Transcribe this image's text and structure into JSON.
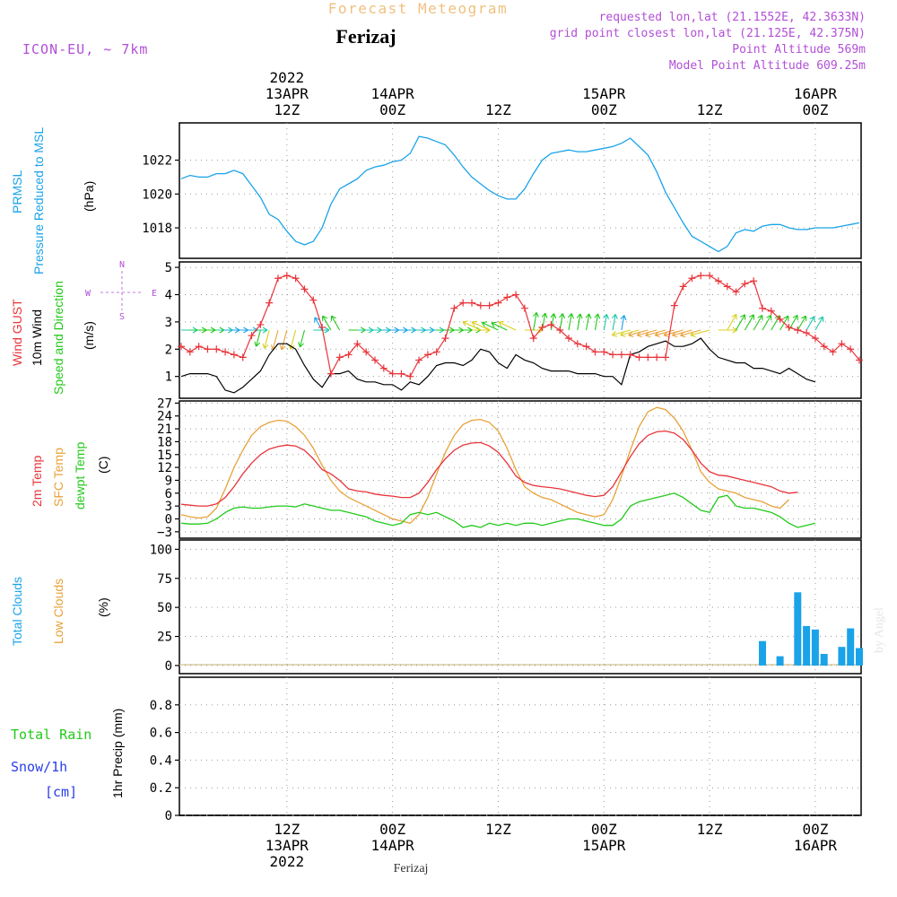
{
  "header": {
    "title": "Forecast Meteogram",
    "location": "Ferizaj",
    "model": "ICON-EU, ~ 7km",
    "requested": "requested lon,lat (21.1552E, 42.3633N)",
    "gridpoint": "grid point closest lon,lat (21.125E, 42.375N)",
    "point_alt": "Point Altitude 569m",
    "model_alt": "Model Point Altitude 609.25m",
    "credit": "by Angel",
    "footer_label": "Ferizaj"
  },
  "colors": {
    "pressure": "#1aa3e8",
    "gust": "#e8343a",
    "wind10": "#000000",
    "temp2m": "#e8343a",
    "sfc": "#e8a23a",
    "dewpt": "#22c91a",
    "clouds_total": "#1aa3e8",
    "clouds_low": "#e8a23a",
    "rain": "#22c91a",
    "snow": "#2a3de8",
    "purple": "#b24fd6"
  },
  "time_axis": {
    "top_labels": [
      {
        "t": 12,
        "lines": [
          "2022",
          "13APR",
          "12Z"
        ]
      },
      {
        "t": 24,
        "lines": [
          "14APR",
          "00Z"
        ]
      },
      {
        "t": 36,
        "lines": [
          "12Z"
        ]
      },
      {
        "t": 48,
        "lines": [
          "15APR",
          "00Z"
        ]
      },
      {
        "t": 60,
        "lines": [
          "12Z"
        ]
      },
      {
        "t": 72,
        "lines": [
          "16APR",
          "00Z"
        ]
      }
    ],
    "bottom_labels": [
      {
        "t": 12,
        "lines": [
          "12Z",
          "13APR",
          "2022"
        ]
      },
      {
        "t": 24,
        "lines": [
          "00Z",
          "14APR"
        ]
      },
      {
        "t": 36,
        "lines": [
          "12Z"
        ]
      },
      {
        "t": 48,
        "lines": [
          "00Z",
          "15APR"
        ]
      },
      {
        "t": 60,
        "lines": [
          "12Z"
        ]
      },
      {
        "t": 72,
        "lines": [
          "00Z",
          "16APR"
        ]
      }
    ],
    "range_hours": [
      0,
      77
    ]
  },
  "chart_data": [
    {
      "id": "pressure",
      "type": "line",
      "ylabel": "(hPa)",
      "side_labels": [
        "PRMSL",
        "Pressure Reduced to MSL"
      ],
      "ylim": [
        1016.2,
        1024.2
      ],
      "yticks": [
        1018,
        1020,
        1022
      ],
      "series": [
        {
          "name": "PRMSL",
          "x": [
            0,
            1,
            2,
            3,
            4,
            5,
            6,
            7,
            8,
            9,
            10,
            11,
            12,
            13,
            14,
            15,
            16,
            17,
            18,
            19,
            20,
            21,
            22,
            23,
            24,
            25,
            26,
            27,
            28,
            29,
            30,
            31,
            32,
            33,
            34,
            35,
            36,
            37,
            38,
            39,
            40,
            41,
            42,
            43,
            44,
            45,
            46,
            47,
            48,
            49,
            50,
            51,
            52,
            53,
            54,
            55,
            56,
            57,
            58,
            59,
            60,
            61,
            62,
            63,
            64,
            65,
            66,
            67,
            68,
            69,
            70,
            71,
            72,
            73,
            74,
            75,
            76,
            77
          ],
          "values": [
            1020.9,
            1021.1,
            1021.0,
            1021.0,
            1021.2,
            1021.2,
            1021.4,
            1021.2,
            1020.5,
            1019.8,
            1018.8,
            1018.5,
            1017.8,
            1017.2,
            1017.0,
            1017.2,
            1018.0,
            1019.4,
            1020.3,
            1020.6,
            1020.9,
            1021.4,
            1021.6,
            1021.7,
            1021.9,
            1022.0,
            1022.4,
            1023.4,
            1023.3,
            1023.1,
            1022.9,
            1022.3,
            1021.6,
            1021.0,
            1020.6,
            1020.2,
            1019.9,
            1019.7,
            1019.7,
            1020.3,
            1021.2,
            1022.0,
            1022.4,
            1022.5,
            1022.6,
            1022.5,
            1022.5,
            1022.6,
            1022.7,
            1022.8,
            1023.0,
            1023.3,
            1022.8,
            1022.3,
            1021.3,
            1020.1,
            1019.2,
            1018.3,
            1017.5,
            1017.2,
            1016.9,
            1016.6,
            1016.9,
            1017.7,
            1017.9,
            1017.8,
            1018.1,
            1018.2,
            1018.2,
            1018.0,
            1017.9,
            1017.9,
            1018.0,
            1018.0,
            1018.0,
            1018.1,
            1018.2,
            1018.3
          ]
        }
      ]
    },
    {
      "id": "wind",
      "type": "line",
      "ylabel": "(m/s)",
      "side_labels": [
        "Wind GUST",
        "10m Wind",
        "Speed and Direction"
      ],
      "compass": [
        "N",
        "W",
        "E",
        "S"
      ],
      "ylim": [
        0.2,
        5.2
      ],
      "yticks": [
        1,
        2,
        3,
        4,
        5
      ],
      "barb_baseline": 2.7,
      "series": [
        {
          "name": "Wind GUST",
          "values": [
            2.1,
            1.9,
            2.1,
            2.0,
            2.0,
            1.9,
            1.8,
            1.7,
            2.5,
            2.9,
            3.7,
            4.6,
            4.7,
            4.6,
            4.2,
            3.8,
            2.8,
            1.1,
            1.7,
            1.8,
            2.2,
            1.9,
            1.6,
            1.3,
            1.1,
            1.1,
            1.0,
            1.6,
            1.8,
            1.9,
            2.4,
            3.5,
            3.7,
            3.7,
            3.6,
            3.6,
            3.7,
            3.9,
            4.0,
            3.5,
            2.4,
            2.8,
            2.9,
            2.7,
            2.4,
            2.2,
            2.1,
            1.9,
            1.9,
            1.8,
            1.8,
            1.8,
            1.7,
            1.7,
            1.7,
            1.7,
            3.6,
            4.3,
            4.6,
            4.7,
            4.7,
            4.5,
            4.3,
            4.1,
            4.4,
            4.5,
            3.5,
            3.4,
            3.1,
            2.8,
            2.7,
            2.6,
            2.4,
            2.1,
            1.9,
            2.2,
            2.0,
            1.6
          ]
        },
        {
          "name": "10m Wind",
          "values": [
            1.0,
            1.1,
            1.1,
            1.1,
            1.0,
            0.5,
            0.4,
            0.6,
            0.9,
            1.2,
            1.8,
            2.2,
            2.2,
            2.0,
            1.4,
            0.9,
            0.6,
            1.1,
            1.1,
            1.2,
            0.9,
            0.8,
            0.8,
            0.7,
            0.7,
            0.5,
            0.8,
            0.7,
            1.0,
            1.4,
            1.5,
            1.5,
            1.4,
            1.6,
            2.0,
            1.9,
            1.5,
            1.3,
            1.8,
            1.6,
            1.5,
            1.3,
            1.2,
            1.2,
            1.2,
            1.1,
            1.1,
            1.1,
            1.0,
            1.0,
            0.7,
            1.8,
            1.9,
            2.1,
            2.2,
            2.3,
            2.1,
            2.1,
            2.2,
            2.4,
            2.0,
            1.7,
            1.6,
            1.5,
            1.5,
            1.3,
            1.3,
            1.2,
            1.1,
            1.3,
            1.1,
            0.9,
            0.8
          ]
        }
      ]
    },
    {
      "id": "temperature",
      "type": "line",
      "ylabel": "(C)",
      "side_labels": [
        "2m Temp",
        "SFC Temp",
        "dewpt Temp"
      ],
      "ylim": [
        -4.5,
        27.5
      ],
      "yticks": [
        -3,
        0,
        3,
        6,
        9,
        12,
        15,
        18,
        21,
        24,
        27
      ],
      "series": [
        {
          "name": "2m Temp",
          "values": [
            3.4,
            3.2,
            3.0,
            3.0,
            3.5,
            5.0,
            7.5,
            10.5,
            13.0,
            15.0,
            16.3,
            16.9,
            17.2,
            17.0,
            16.0,
            14.0,
            11.5,
            10.5,
            9.0,
            7.0,
            6.5,
            6.3,
            5.8,
            5.5,
            5.3,
            5.0,
            5.0,
            6.0,
            8.5,
            11.5,
            14.0,
            16.0,
            17.2,
            17.7,
            17.8,
            17.0,
            15.5,
            13.0,
            10.0,
            8.5,
            7.8,
            7.5,
            7.3,
            7.0,
            6.5,
            6.0,
            5.5,
            5.2,
            5.5,
            7.5,
            11.0,
            14.5,
            17.5,
            19.5,
            20.3,
            20.5,
            20.0,
            18.5,
            16.0,
            13.0,
            11.0,
            10.2,
            10.0,
            9.5,
            9.0,
            8.5,
            8.0,
            7.5,
            6.5,
            6.0,
            6.2
          ]
        },
        {
          "name": "SFC Temp",
          "values": [
            1.0,
            0.5,
            0.2,
            0.5,
            2.5,
            7.0,
            12.0,
            16.0,
            19.5,
            21.5,
            22.5,
            23.0,
            22.8,
            21.5,
            19.5,
            16.5,
            12.5,
            9.0,
            6.5,
            5.0,
            4.0,
            3.0,
            2.0,
            1.0,
            0.0,
            -0.5,
            -1.0,
            1.0,
            5.0,
            10.5,
            15.5,
            19.5,
            22.0,
            23.0,
            23.2,
            22.5,
            20.5,
            16.5,
            11.5,
            7.5,
            6.0,
            5.0,
            4.5,
            3.5,
            2.5,
            1.5,
            1.0,
            0.5,
            1.0,
            4.5,
            10.0,
            16.0,
            21.5,
            25.0,
            26.0,
            25.5,
            23.5,
            20.5,
            16.0,
            11.0,
            8.5,
            7.0,
            6.5,
            6.0,
            5.0,
            4.5,
            4.0,
            3.0,
            2.5,
            4.5
          ]
        },
        {
          "name": "dewpt Temp",
          "values": [
            -1.0,
            -1.2,
            -1.2,
            -1.0,
            0.0,
            1.5,
            2.5,
            2.8,
            2.5,
            2.5,
            2.8,
            3.0,
            3.0,
            2.8,
            3.5,
            3.0,
            2.5,
            2.0,
            2.0,
            1.5,
            1.0,
            0.5,
            -0.5,
            -1.0,
            -1.5,
            -1.0,
            1.0,
            1.5,
            1.0,
            1.5,
            0.5,
            -0.5,
            -2.0,
            -1.5,
            -2.0,
            -1.0,
            -1.5,
            -1.0,
            -1.5,
            -1.0,
            -1.0,
            -1.5,
            -1.0,
            -0.5,
            0.0,
            0.0,
            -0.5,
            -1.0,
            -1.5,
            -1.5,
            0.0,
            3.0,
            4.0,
            4.5,
            5.0,
            5.5,
            6.0,
            5.0,
            3.5,
            2.0,
            1.5,
            5.0,
            5.5,
            3.0,
            2.5,
            2.5,
            2.0,
            1.5,
            0.5,
            -1.0,
            -2.0,
            -1.5,
            -1.0
          ]
        }
      ]
    },
    {
      "id": "clouds",
      "type": "bar",
      "ylabel": "(%)",
      "side_labels": [
        "Total Clouds",
        "Low Clouds"
      ],
      "ylim": [
        -7,
        108
      ],
      "yticks": [
        0,
        25,
        50,
        75,
        100
      ],
      "series": [
        {
          "name": "Total Clouds",
          "x": [
            66,
            68,
            70,
            71,
            72,
            73,
            75,
            76,
            77
          ],
          "values": [
            21,
            8,
            63,
            34,
            31,
            10,
            16,
            32,
            15
          ]
        },
        {
          "name": "Low Clouds",
          "x": [],
          "values": []
        }
      ]
    },
    {
      "id": "precip",
      "type": "bar",
      "ylabel": "1hr Precip (mm)",
      "side_labels": [
        "Total  Rain",
        "Snow/1h",
        "[cm]"
      ],
      "ylim": [
        0,
        1.0
      ],
      "yticks": [
        0,
        0.2,
        0.4,
        0.6,
        0.8
      ],
      "series": [
        {
          "name": "Rain",
          "values": []
        },
        {
          "name": "Snow",
          "values": []
        }
      ]
    }
  ]
}
